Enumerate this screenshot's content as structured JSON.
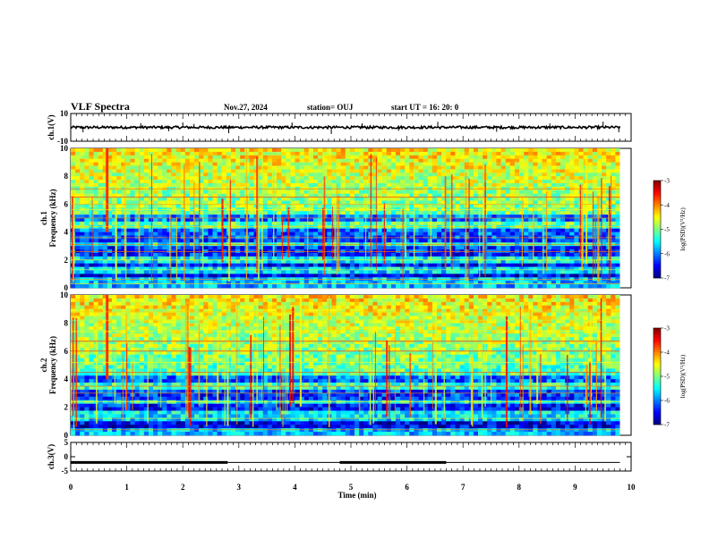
{
  "header": {
    "title": "VLF Spectra",
    "date": "Nov.27, 2024",
    "station": "station= OUJ",
    "start": "start UT = 16: 20: 0"
  },
  "chart_data": [
    {
      "type": "line",
      "name": "ch1-voltage",
      "ylabel": "ch.1(V)",
      "ylim": [
        -10,
        10
      ],
      "yticks": [
        "10",
        "-10"
      ],
      "xlim": [
        0,
        10
      ],
      "data_end_min": 9.8,
      "baseline": 0,
      "spikes": [
        {
          "x": 0.22,
          "y": -3.5
        },
        {
          "x": 1.25,
          "y": 3.0
        },
        {
          "x": 1.75,
          "y": -2.8
        },
        {
          "x": 2.0,
          "y": 3.6
        },
        {
          "x": 2.2,
          "y": 2.5
        },
        {
          "x": 2.82,
          "y": -4.2
        },
        {
          "x": 3.95,
          "y": 3.5
        },
        {
          "x": 4.65,
          "y": -4.8
        },
        {
          "x": 5.2,
          "y": 3.0
        },
        {
          "x": 5.85,
          "y": -2.5
        },
        {
          "x": 6.55,
          "y": 4.0
        },
        {
          "x": 7.6,
          "y": -3.2
        },
        {
          "x": 8.55,
          "y": 2.8
        },
        {
          "x": 9.5,
          "y": 4.1
        },
        {
          "x": 9.78,
          "y": -3.5
        }
      ]
    },
    {
      "type": "heatmap",
      "name": "ch1-spectrogram",
      "ylabel": "ch.1 Frequency (kHz)",
      "ylim": [
        0,
        10
      ],
      "yticks": [
        "0",
        "2",
        "4",
        "6",
        "8",
        "10"
      ],
      "xlim": [
        0,
        10
      ],
      "data_end_min": 9.8,
      "colorbar": {
        "label": "log(PSD)(V²/Hz)",
        "range": [
          -7,
          -3
        ],
        "ticks": [
          "-3",
          "-4",
          "-5",
          "-6",
          "-7"
        ]
      },
      "dark_bands_khz": [
        [
          0.8,
          1.1
        ],
        [
          1.5,
          1.7
        ],
        [
          2.3,
          3.0
        ],
        [
          3.3,
          4.2
        ],
        [
          4.8,
          5.3
        ]
      ],
      "tonal_lines_khz": [
        0.3,
        0.6,
        1.3,
        2.0,
        2.6,
        3.1,
        3.6,
        4.4,
        5.0,
        5.6,
        6.0,
        6.5,
        7.1
      ]
    },
    {
      "type": "heatmap",
      "name": "ch2-spectrogram",
      "ylabel": "ch.2 Frequency (kHz)",
      "ylim": [
        0,
        10
      ],
      "yticks": [
        "0",
        "2",
        "4",
        "6",
        "8",
        "10"
      ],
      "xlim": [
        0,
        10
      ],
      "data_end_min": 9.8,
      "colorbar": {
        "label": "log(PSD)(V²/Hz)",
        "range": [
          -7,
          -3
        ],
        "ticks": [
          "-3",
          "-4",
          "-5",
          "-6",
          "-7"
        ]
      },
      "dark_bands_khz": [
        [
          0.6,
          1.0
        ],
        [
          1.8,
          2.2
        ],
        [
          2.6,
          3.2
        ],
        [
          3.8,
          4.2
        ]
      ],
      "tonal_lines_khz": [
        0.4,
        1.2,
        2.4,
        3.0,
        3.5,
        4.5,
        5.2,
        6.0,
        6.7,
        7.4,
        8.2,
        8.8
      ]
    },
    {
      "type": "line",
      "name": "ch3-voltage",
      "ylabel": "ch.3(V)",
      "ylim": [
        -5,
        5
      ],
      "yticks": [
        "5",
        "0",
        "-5"
      ],
      "xlim": [
        0,
        10
      ],
      "xlabel": "Time (min)",
      "xticks": [
        "0",
        "1",
        "2",
        "3",
        "4",
        "5",
        "6",
        "7",
        "8",
        "9",
        "10"
      ],
      "data_end_min": 9.8,
      "baseline": -2.0,
      "thick_segments": [
        [
          0,
          2.8
        ],
        [
          4.8,
          6.7
        ]
      ]
    }
  ],
  "colors": {
    "colormap": [
      "#00007f",
      "#0000ff",
      "#0080ff",
      "#00ffff",
      "#80ff80",
      "#ffff00",
      "#ff8000",
      "#ff0000",
      "#7f0000"
    ]
  }
}
